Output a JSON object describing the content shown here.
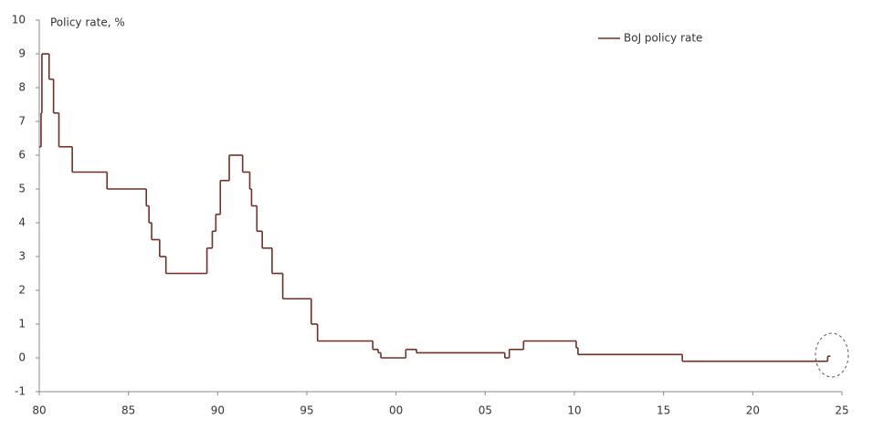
{
  "chart_data": {
    "type": "step",
    "y_axis_label": "Policy rate, %",
    "x": [
      1980.0,
      1980.1,
      1980.15,
      1980.55,
      1980.8,
      1981.1,
      1981.85,
      1983.8,
      1986.0,
      1986.15,
      1986.3,
      1986.75,
      1987.1,
      1989.4,
      1989.7,
      1989.9,
      1990.15,
      1990.65,
      1991.4,
      1991.8,
      1991.9,
      1992.2,
      1992.5,
      1993.05,
      1993.65,
      1995.25,
      1995.6,
      1998.7,
      1999.0,
      1999.15,
      2000.55,
      2001.15,
      2006.1,
      2006.35,
      2007.15,
      2010.1,
      2010.2,
      2016.05,
      2024.2
    ],
    "series": [
      {
        "name": "BoJ policy rate",
        "color": "#6e3027",
        "values": [
          6.25,
          7.25,
          9.0,
          8.25,
          7.25,
          6.25,
          5.5,
          5.0,
          4.5,
          4.0,
          3.5,
          3.0,
          2.5,
          3.25,
          3.75,
          4.25,
          5.25,
          6.0,
          5.5,
          5.0,
          4.5,
          3.75,
          3.25,
          2.5,
          1.75,
          1.0,
          0.5,
          0.25,
          0.15,
          0.0,
          0.25,
          0.15,
          0.0,
          0.25,
          0.5,
          0.3,
          0.1,
          -0.1,
          0.05
        ]
      }
    ],
    "xlim": [
      1980,
      2025
    ],
    "ylim": [
      -1,
      10
    ],
    "xticks": [
      {
        "value": 1980,
        "label": "80"
      },
      {
        "value": 1985,
        "label": "85"
      },
      {
        "value": 1990,
        "label": "90"
      },
      {
        "value": 1995,
        "label": "95"
      },
      {
        "value": 2000,
        "label": "00"
      },
      {
        "value": 2005,
        "label": "05"
      },
      {
        "value": 2010,
        "label": "10"
      },
      {
        "value": 2015,
        "label": "15"
      },
      {
        "value": 2020,
        "label": "20"
      },
      {
        "value": 2025,
        "label": "25"
      }
    ],
    "yticks": [
      -1,
      0,
      1,
      2,
      3,
      4,
      5,
      6,
      7,
      8,
      9,
      10
    ],
    "legend": "top-right"
  }
}
